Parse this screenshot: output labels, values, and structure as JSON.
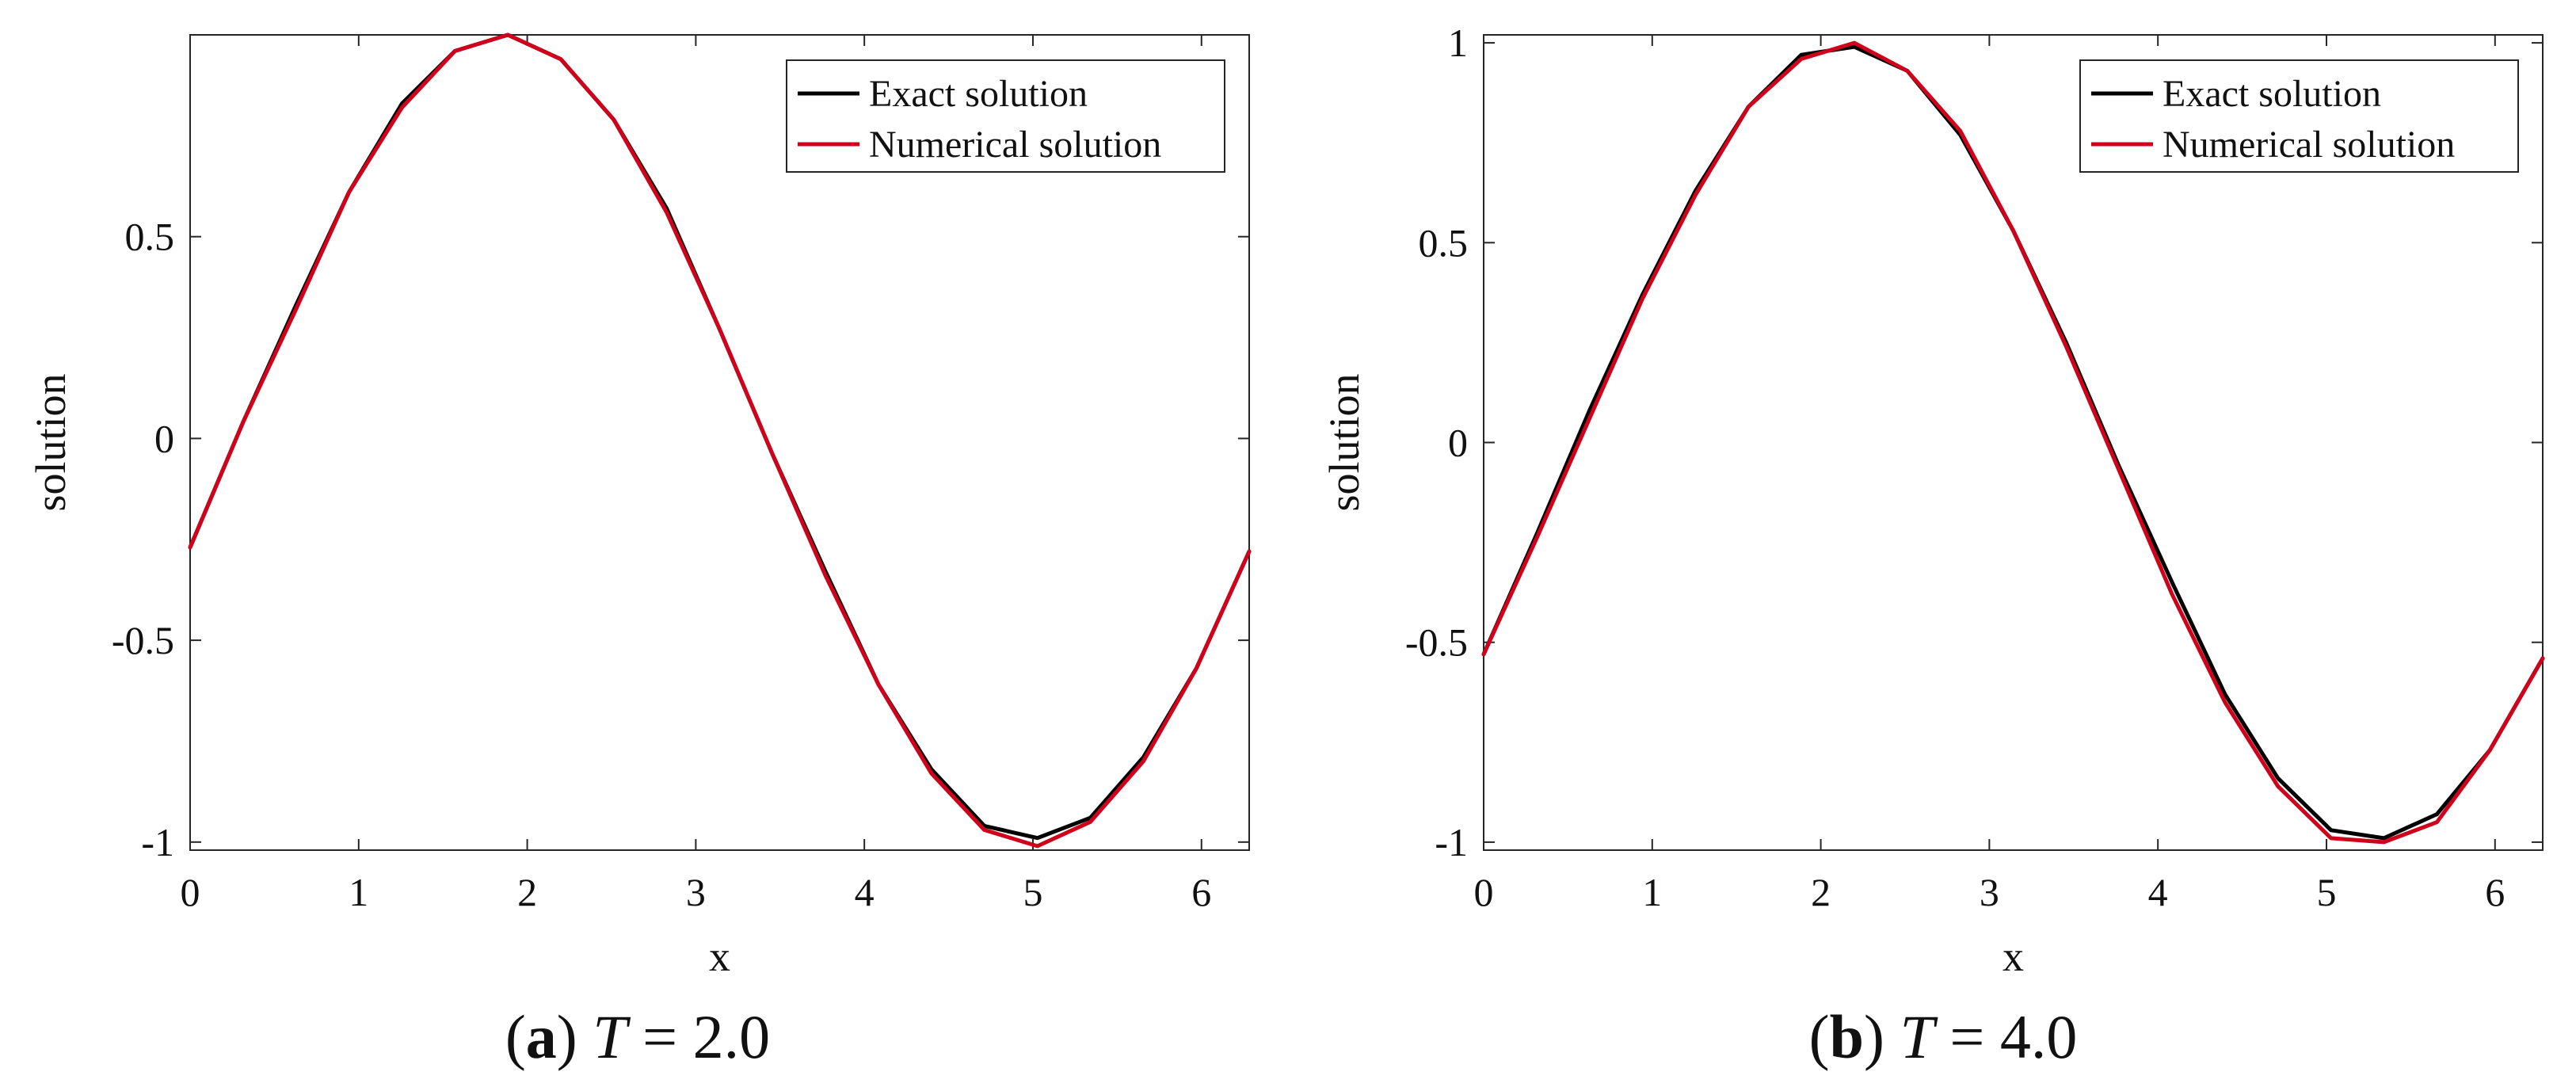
{
  "chart_data": [
    {
      "type": "line",
      "caption": {
        "label": "a",
        "var": "T",
        "eq": " = ",
        "val": "2.0"
      },
      "xlabel": "x",
      "ylabel": "solution",
      "xlim": [
        0,
        6.283
      ],
      "ylim": [
        -1.02,
        1.0
      ],
      "xticks": [
        0,
        1,
        2,
        3,
        4,
        5,
        6
      ],
      "xtick_labels": [
        "0",
        "1",
        "2",
        "3",
        "4",
        "5",
        "6"
      ],
      "yticks": [
        -1,
        -0.5,
        0,
        0.5
      ],
      "ytick_labels": [
        "-1",
        "-0.5",
        "0",
        "0.5"
      ],
      "legend_position": "top-right",
      "x": [
        0,
        0.314,
        0.628,
        0.942,
        1.257,
        1.571,
        1.885,
        2.199,
        2.513,
        2.827,
        3.142,
        3.456,
        3.77,
        4.084,
        4.398,
        4.712,
        5.027,
        5.341,
        5.655,
        5.969,
        6.283
      ],
      "series": [
        {
          "name": "Exact solution",
          "color": "#000000",
          "values": [
            -0.27,
            0.04,
            0.33,
            0.61,
            0.83,
            0.96,
            1.0,
            0.94,
            0.79,
            0.57,
            0.27,
            -0.04,
            -0.33,
            -0.61,
            -0.82,
            -0.96,
            -0.99,
            -0.94,
            -0.79,
            -0.57,
            -0.28
          ]
        },
        {
          "name": "Numerical solution",
          "color": "#d0021b",
          "values": [
            -0.27,
            0.04,
            0.32,
            0.61,
            0.82,
            0.96,
            1.0,
            0.94,
            0.79,
            0.56,
            0.27,
            -0.04,
            -0.34,
            -0.61,
            -0.83,
            -0.97,
            -1.01,
            -0.95,
            -0.8,
            -0.57,
            -0.28
          ]
        }
      ]
    },
    {
      "type": "line",
      "caption": {
        "label": "b",
        "var": "T",
        "eq": " = ",
        "val": "4.0"
      },
      "xlabel": "x",
      "ylabel": "solution",
      "xlim": [
        0,
        6.283
      ],
      "ylim": [
        -1.02,
        1.02
      ],
      "xticks": [
        0,
        1,
        2,
        3,
        4,
        5,
        6
      ],
      "xtick_labels": [
        "0",
        "1",
        "2",
        "3",
        "4",
        "5",
        "6"
      ],
      "yticks": [
        -1,
        -0.5,
        0,
        0.5,
        1
      ],
      "ytick_labels": [
        "-1",
        "-0.5",
        "0",
        "0.5",
        "1"
      ],
      "legend_position": "top-right",
      "x": [
        0,
        0.314,
        0.628,
        0.942,
        1.257,
        1.571,
        1.885,
        2.199,
        2.513,
        2.827,
        3.142,
        3.456,
        3.77,
        4.084,
        4.398,
        4.712,
        5.027,
        5.341,
        5.655,
        5.969,
        6.283
      ],
      "series": [
        {
          "name": "Exact solution",
          "color": "#000000",
          "values": [
            -0.53,
            -0.23,
            0.08,
            0.37,
            0.63,
            0.84,
            0.97,
            0.99,
            0.93,
            0.77,
            0.53,
            0.25,
            -0.06,
            -0.35,
            -0.63,
            -0.84,
            -0.97,
            -0.99,
            -0.93,
            -0.77,
            -0.54
          ]
        },
        {
          "name": "Numerical solution",
          "color": "#d0021b",
          "values": [
            -0.53,
            -0.24,
            0.06,
            0.36,
            0.62,
            0.84,
            0.96,
            1.0,
            0.93,
            0.78,
            0.53,
            0.24,
            -0.07,
            -0.38,
            -0.65,
            -0.86,
            -0.99,
            -1.0,
            -0.95,
            -0.77,
            -0.54
          ]
        }
      ]
    }
  ]
}
